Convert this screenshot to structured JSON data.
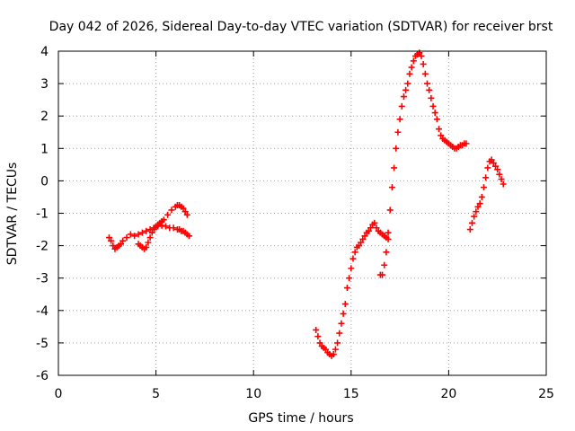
{
  "chart_data": {
    "type": "scatter",
    "title": "Day 042 of 2026, Sidereal Day-to-day VTEC variation (SDTVAR) for receiver brst",
    "xlabel": "GPS time / hours",
    "ylabel": "SDTVAR / TECUs",
    "xlim": [
      0,
      25
    ],
    "ylim": [
      -6,
      4
    ],
    "xticks": [
      0,
      5,
      10,
      15,
      20,
      25
    ],
    "yticks": [
      -6,
      -5,
      -4,
      -3,
      -2,
      -1,
      0,
      1,
      2,
      3,
      4
    ],
    "grid": true,
    "legend": "none",
    "marker": "plus",
    "color": "#ff0000",
    "segments": [
      {
        "x": [
          2.6,
          2.7,
          2.8,
          2.9,
          3.0,
          3.1,
          3.2,
          3.3,
          3.5,
          3.7,
          3.9,
          4.1,
          4.3,
          4.5,
          4.7,
          4.9,
          5.1,
          5.3,
          5.5,
          5.7,
          5.9,
          6.1,
          6.2,
          6.3,
          6.4,
          6.5,
          6.6,
          6.7
        ],
        "y": [
          -1.75,
          -1.85,
          -2.0,
          -2.1,
          -2.05,
          -2.0,
          -1.95,
          -1.85,
          -1.75,
          -1.65,
          -1.7,
          -1.65,
          -1.6,
          -1.55,
          -1.5,
          -1.45,
          -1.4,
          -1.38,
          -1.4,
          -1.45,
          -1.45,
          -1.5,
          -1.5,
          -1.55,
          -1.55,
          -1.6,
          -1.65,
          -1.7
        ]
      },
      {
        "x": [
          4.1,
          4.2,
          4.3,
          4.4,
          4.5,
          4.6,
          4.7,
          4.8,
          4.9,
          5.0,
          5.1,
          5.2,
          5.3,
          5.4,
          5.6,
          5.8,
          6.0,
          6.1,
          6.2,
          6.3,
          6.4,
          6.5,
          6.6
        ],
        "y": [
          -1.95,
          -2.0,
          -2.05,
          -2.1,
          -2.05,
          -1.9,
          -1.75,
          -1.6,
          -1.5,
          -1.4,
          -1.35,
          -1.3,
          -1.25,
          -1.2,
          -1.05,
          -0.9,
          -0.8,
          -0.75,
          -0.75,
          -0.8,
          -0.85,
          -0.95,
          -1.05
        ]
      },
      {
        "x": [
          13.2,
          13.3,
          13.4,
          13.5,
          13.6,
          13.7,
          13.8,
          13.9,
          14.0,
          14.1,
          14.2,
          14.3,
          14.4,
          14.5,
          14.6,
          14.7,
          14.8,
          14.9,
          15.0,
          15.1,
          15.2,
          15.3,
          15.4,
          15.5,
          15.6,
          15.7,
          15.8,
          15.9,
          16.0,
          16.1,
          16.2,
          16.3,
          16.4,
          16.5,
          16.6,
          16.7,
          16.8,
          16.9
        ],
        "y": [
          -4.6,
          -4.8,
          -5.0,
          -5.1,
          -5.15,
          -5.2,
          -5.3,
          -5.35,
          -5.4,
          -5.35,
          -5.2,
          -5.0,
          -4.7,
          -4.4,
          -4.1,
          -3.8,
          -3.3,
          -3.0,
          -2.7,
          -2.4,
          -2.2,
          -2.05,
          -2.0,
          -1.9,
          -1.8,
          -1.7,
          -1.6,
          -1.55,
          -1.45,
          -1.35,
          -1.3,
          -1.45,
          -1.55,
          -1.6,
          -1.65,
          -1.7,
          -1.75,
          -1.8
        ]
      },
      {
        "x": [
          16.5,
          16.6,
          16.7,
          16.8,
          16.9,
          17.0,
          17.1,
          17.2,
          17.3,
          17.4,
          17.5,
          17.6,
          17.7,
          17.8,
          17.9,
          18.0,
          18.1,
          18.2,
          18.3,
          18.4,
          18.5,
          18.6,
          18.7,
          18.8,
          18.9,
          19.0,
          19.1,
          19.2,
          19.3,
          19.4,
          19.5,
          19.6,
          19.7,
          19.8,
          19.9,
          20.0,
          20.1,
          20.2,
          20.3,
          20.4,
          20.5,
          20.6,
          20.7,
          20.8,
          20.9
        ],
        "y": [
          -2.9,
          -2.9,
          -2.6,
          -2.2,
          -1.6,
          -0.9,
          -0.2,
          0.4,
          1.0,
          1.5,
          1.9,
          2.3,
          2.6,
          2.8,
          3.0,
          3.3,
          3.5,
          3.7,
          3.85,
          3.9,
          3.95,
          3.85,
          3.6,
          3.3,
          3.0,
          2.8,
          2.55,
          2.3,
          2.1,
          1.9,
          1.6,
          1.4,
          1.3,
          1.25,
          1.2,
          1.15,
          1.1,
          1.05,
          1.0,
          1.0,
          1.05,
          1.1,
          1.1,
          1.15,
          1.15
        ]
      },
      {
        "x": [
          21.1,
          21.2,
          21.3,
          21.4,
          21.5,
          21.6,
          21.7,
          21.8,
          21.9,
          22.0,
          22.1,
          22.2,
          22.3,
          22.4,
          22.5,
          22.6,
          22.7,
          22.8
        ],
        "y": [
          -1.5,
          -1.3,
          -1.1,
          -0.95,
          -0.8,
          -0.7,
          -0.5,
          -0.2,
          0.1,
          0.4,
          0.6,
          0.65,
          0.55,
          0.45,
          0.35,
          0.2,
          0.05,
          -0.1
        ]
      }
    ]
  }
}
